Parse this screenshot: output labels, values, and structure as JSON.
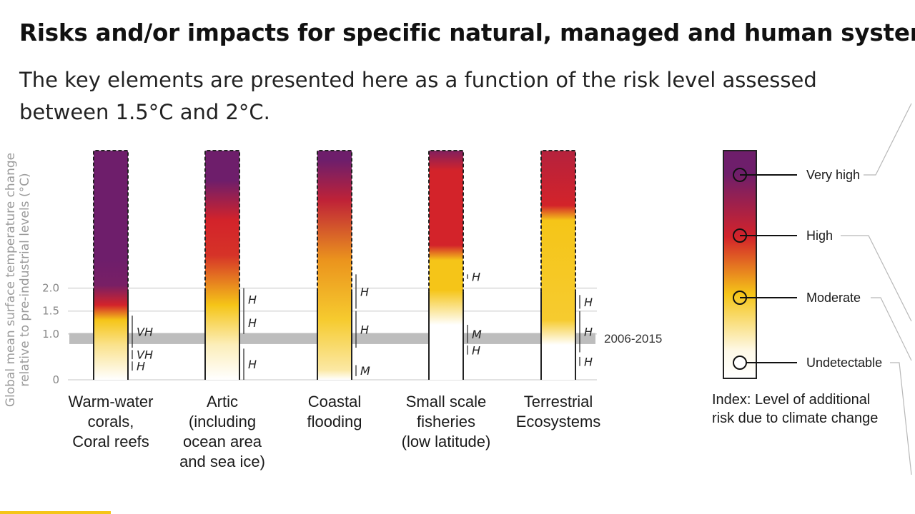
{
  "title": "Risks and/or impacts for specific natural, managed and human systems",
  "subtitle": "The key elements are presented here as a function of the risk level assessed between 1.5°C and 2°C.",
  "colors": {
    "undetectable": "#ffffff",
    "moderate": "#f5c518",
    "high": "#d3232a",
    "very_high": "#6e1e6b",
    "band": "#bdbdbd",
    "grid": "#d8d8d8"
  },
  "chart_data": {
    "type": "heatmap",
    "ylabel": "Global mean surface temperature change relative to pre-industrial levels (°C)",
    "ylim": [
      0,
      2.3
    ],
    "yticks": [
      {
        "value": 0,
        "label": "0"
      },
      {
        "value": 1.0,
        "label": "1.0"
      },
      {
        "value": 1.5,
        "label": "1.5"
      },
      {
        "value": 2.0,
        "label": "2.0"
      }
    ],
    "reference_band": {
      "label": "2006-2015",
      "range": [
        0.78,
        1.02
      ]
    },
    "risk_levels": [
      "Undetectable",
      "Moderate",
      "High",
      "Very high"
    ],
    "systems": [
      {
        "name": "Warm-water corals, Coral reefs",
        "label_lines": [
          "Warm-water",
          "corals,",
          "Coral reefs"
        ],
        "risk_stops": [
          [
            0,
            0
          ],
          [
            0.35,
            0.5
          ],
          [
            0.6,
            1.0
          ],
          [
            0.75,
            2.0
          ],
          [
            0.95,
            2.9
          ],
          [
            1.2,
            3.0
          ],
          [
            2.3,
            3.0
          ]
        ],
        "confidence": [
          {
            "range": [
              0.2,
              0.4
            ],
            "label": "H"
          },
          {
            "range": [
              0.45,
              0.65
            ],
            "label": "VH"
          },
          {
            "range": [
              0.7,
              1.4
            ],
            "label": "VH"
          }
        ]
      },
      {
        "name": "Artic (including ocean area and sea ice)",
        "label_lines": [
          "Artic",
          "(including",
          "ocean area",
          "and sea ice)"
        ],
        "risk_stops": [
          [
            0,
            0
          ],
          [
            0.35,
            0.3
          ],
          [
            0.75,
            1.0
          ],
          [
            1.25,
            1.9
          ],
          [
            1.6,
            2.0
          ],
          [
            2.0,
            3.0
          ],
          [
            2.3,
            3.0
          ]
        ],
        "confidence": [
          {
            "range": [
              0,
              0.68
            ],
            "label": "H"
          },
          {
            "range": [
              1.0,
              1.5
            ],
            "label": "H"
          },
          {
            "range": [
              1.5,
              2.0
            ],
            "label": "H"
          }
        ]
      },
      {
        "name": "Coastal flooding",
        "label_lines": [
          "Coastal",
          "flooding"
        ],
        "risk_stops": [
          [
            0,
            0
          ],
          [
            0.1,
            0.4
          ],
          [
            0.6,
            0.9
          ],
          [
            1.2,
            1.3
          ],
          [
            1.8,
            2.2
          ],
          [
            2.2,
            3.0
          ],
          [
            2.3,
            3.0
          ]
        ],
        "confidence": [
          {
            "range": [
              0.08,
              0.32
            ],
            "label": "M"
          },
          {
            "range": [
              0.7,
              1.5
            ],
            "label": "H"
          },
          {
            "range": [
              1.55,
              2.3
            ],
            "label": "H"
          }
        ]
      },
      {
        "name": "Small scale fisheries (low latitude)",
        "label_lines": [
          "Small scale",
          "fisheries",
          "(low latitude)"
        ],
        "risk_stops": [
          [
            0,
            0
          ],
          [
            0.55,
            0.0
          ],
          [
            0.9,
            1.0
          ],
          [
            1.2,
            1.0
          ],
          [
            1.35,
            2.0
          ],
          [
            2.1,
            2.0
          ],
          [
            2.3,
            2.8
          ]
        ],
        "confidence": [
          {
            "range": [
              0.55,
              0.75
            ],
            "label": "H"
          },
          {
            "range": [
              0.8,
              1.2
            ],
            "label": "M"
          },
          {
            "range": [
              2.2,
              2.35
            ],
            "label": "H"
          }
        ]
      },
      {
        "name": "Terrestrial Ecosystems",
        "label_lines": [
          "Terrestrial",
          "Ecosystems"
        ],
        "risk_stops": [
          [
            0,
            0
          ],
          [
            0.35,
            0.0
          ],
          [
            0.6,
            0.9
          ],
          [
            1.6,
            1.0
          ],
          [
            1.75,
            2.0
          ],
          [
            2.3,
            2.3
          ]
        ],
        "confidence": [
          {
            "range": [
              0.3,
              0.5
            ],
            "label": "H"
          },
          {
            "range": [
              0.6,
              1.5
            ],
            "label": "H"
          },
          {
            "range": [
              1.55,
              1.85
            ],
            "label": "H"
          }
        ]
      }
    ],
    "legend": {
      "title_lines": [
        "Index: Level of additional",
        "risk due to climate change"
      ],
      "items": [
        {
          "label": "Very high",
          "level": 3
        },
        {
          "label": "High",
          "level": 2
        },
        {
          "label": "Moderate",
          "level": 1
        },
        {
          "label": "Undetectable",
          "level": 0
        }
      ]
    }
  }
}
